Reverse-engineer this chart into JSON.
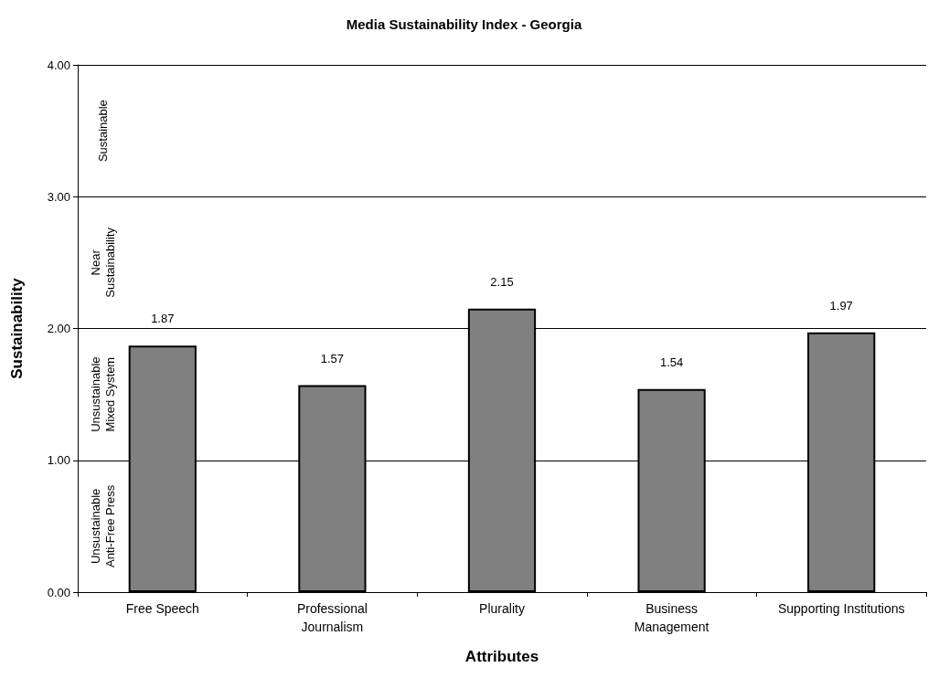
{
  "chart_data": {
    "type": "bar",
    "title": "Media Sustainability Index - Georgia",
    "xlabel": "Attributes",
    "ylabel": "Sustainability",
    "categories": [
      "Free Speech",
      "Professional\nJournalism",
      "Plurality",
      "Business\nManagement",
      "Supporting Institutions"
    ],
    "values": [
      1.87,
      1.57,
      2.15,
      1.54,
      1.97
    ],
    "color": "#808080",
    "data_labels": true,
    "ylim": [
      0,
      4
    ],
    "yticks": [
      {
        "value": 0,
        "label": "0.00"
      },
      {
        "value": 1,
        "label": "1.00"
      },
      {
        "value": 2,
        "label": "2.00"
      },
      {
        "value": 3,
        "label": "3.00"
      },
      {
        "value": 4,
        "label": "4.00"
      }
    ],
    "grid": "y",
    "annotations": [
      "Unsustainable\nAnti-Free Press",
      "Unsustainable\nMixed System",
      "Near\nSustainability",
      "Sustainable"
    ]
  }
}
